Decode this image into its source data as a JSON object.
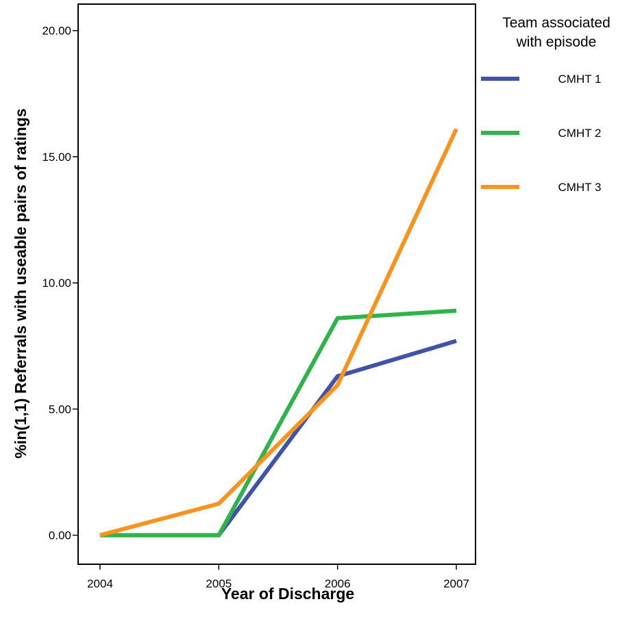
{
  "chart_data": {
    "type": "line",
    "xlabel": "Year of Discharge",
    "ylabel": "%in(1,1) Referrals with useable pairs of ratings",
    "categories": [
      "2004",
      "2005",
      "2006",
      "2007"
    ],
    "y_ticks": [
      "0.00",
      "5.00",
      "10.00",
      "15.00",
      "20.00"
    ],
    "ylim": [
      -1.15,
      21.05
    ],
    "grid": false,
    "legend": {
      "title_line1": "Team associated",
      "title_line2": "with episode",
      "placement": "right"
    },
    "series": [
      {
        "name": "CMHT 1",
        "color": "#3f54a8",
        "values": [
          0.0,
          0.0,
          6.3,
          7.7
        ]
      },
      {
        "name": "CMHT 2",
        "color": "#2fb34a",
        "values": [
          0.0,
          0.0,
          8.6,
          8.9
        ]
      },
      {
        "name": "CMHT 3",
        "color": "#f7941d",
        "values": [
          0.0,
          1.25,
          5.95,
          16.1
        ]
      }
    ]
  }
}
